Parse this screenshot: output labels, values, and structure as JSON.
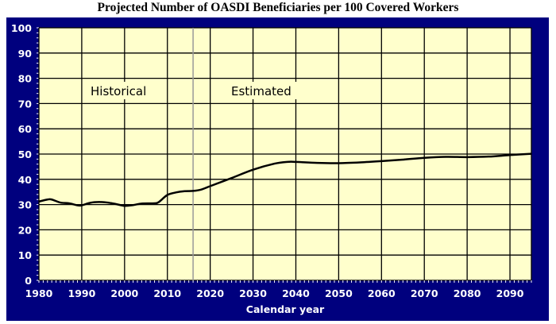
{
  "chart_data": {
    "type": "line",
    "title": "Projected Number of OASDI Beneficiaries per 100 Covered Workers",
    "xlabel": "Calendar year",
    "ylabel": "",
    "xlim": [
      1980,
      2095
    ],
    "ylim": [
      0,
      100
    ],
    "xticks": [
      1980,
      1990,
      2000,
      2010,
      2020,
      2030,
      2040,
      2050,
      2060,
      2070,
      2080,
      2090
    ],
    "yticks": [
      0,
      10,
      20,
      30,
      40,
      50,
      60,
      70,
      80,
      90,
      100
    ],
    "grid": true,
    "annotations": {
      "historical": "Historical",
      "estimated": "Estimated",
      "divider_year": 2016
    },
    "colors": {
      "background": "#00007e",
      "plot": "#ffffcc",
      "line": "#000000",
      "divider": "#999999"
    },
    "series": [
      {
        "x": [
          1980,
          1982,
          1983,
          1985,
          1987,
          1989,
          1990,
          1992,
          1994,
          1996,
          1998,
          2000,
          2002,
          2004,
          2007,
          2008,
          2010,
          2012,
          2014,
          2016,
          2018,
          2020,
          2025,
          2030,
          2035,
          2038,
          2040,
          2045,
          2050,
          2055,
          2060,
          2065,
          2070,
          2075,
          2080,
          2085,
          2090,
          2095
        ],
        "y": [
          31.2,
          32,
          32,
          30.8,
          30.5,
          29.7,
          29.7,
          30.7,
          31,
          30.8,
          30.2,
          29.5,
          29.8,
          30.4,
          30.5,
          31,
          33.8,
          34.8,
          35.3,
          35.4,
          36,
          37.3,
          40.5,
          43.8,
          46.2,
          46.9,
          46.9,
          46.5,
          46.4,
          46.7,
          47.2,
          47.8,
          48.5,
          48.9,
          48.8,
          49,
          49.6,
          50.1
        ]
      }
    ]
  }
}
